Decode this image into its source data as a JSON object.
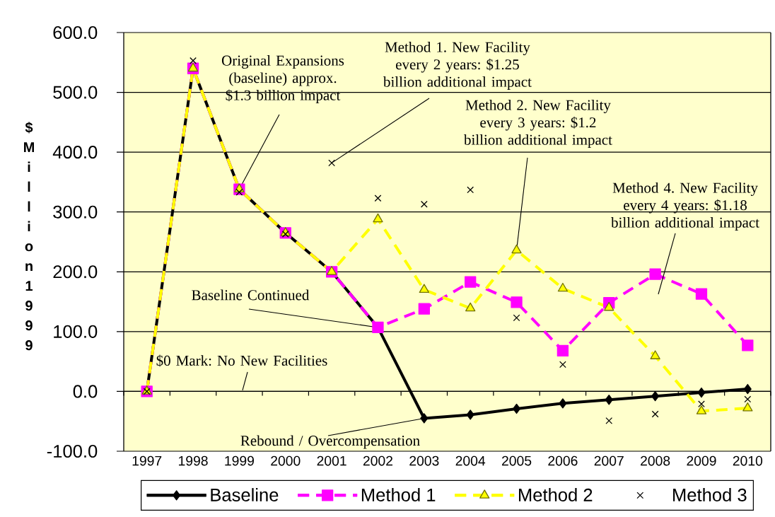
{
  "chart_data": {
    "type": "line",
    "ylabel": "$ Million 1999",
    "categories": [
      "1997",
      "1998",
      "1999",
      "2000",
      "2001",
      "2002",
      "2003",
      "2004",
      "2005",
      "2006",
      "2007",
      "2008",
      "2009",
      "2010"
    ],
    "series": [
      {
        "name": "Baseline",
        "color": "#000000",
        "marker": "diamond",
        "line_style": "solid",
        "values": [
          0,
          540,
          338,
          265,
          200,
          107,
          -45,
          -39,
          -29,
          -20,
          -14,
          -8,
          -2,
          4
        ]
      },
      {
        "name": "Method 1",
        "color": "#ff00ff",
        "marker": "square",
        "line_style": "dashed",
        "values": [
          0,
          540,
          338,
          265,
          200,
          107,
          138,
          183,
          149,
          68,
          148,
          196,
          163,
          77
        ]
      },
      {
        "name": "Method 2",
        "color": "#ffff00",
        "marker": "triangle",
        "line_style": "dashed",
        "values": [
          0,
          540,
          338,
          265,
          200,
          288,
          170,
          139,
          236,
          172,
          140,
          59,
          -33,
          -28
        ]
      },
      {
        "name": "Method 3",
        "type": "scatter",
        "color": "#000000",
        "marker": "cross",
        "values": [
          0,
          553,
          333,
          263,
          382,
          323,
          313,
          337,
          123,
          45,
          -49,
          -38,
          -21,
          -13
        ]
      }
    ],
    "ylim": [
      -100,
      600
    ],
    "yticks": [
      {
        "value": -100,
        "label": "-100.0"
      },
      {
        "value": 0,
        "label": "0.0"
      },
      {
        "value": 100,
        "label": "100.0"
      },
      {
        "value": 200,
        "label": "200.0"
      },
      {
        "value": 300,
        "label": "300.0"
      },
      {
        "value": 400,
        "label": "400.0"
      },
      {
        "value": 500,
        "label": "500.0"
      },
      {
        "value": 600,
        "label": "600.0"
      }
    ],
    "grid": "y",
    "legend": "bottom",
    "annotations": [
      {
        "text": "Original Expansions (baseline) approx. $1.3 billion impact",
        "x": "1999",
        "y": 338
      },
      {
        "text": "Method 1. New Facility every 2 years: $1.25 billion additional impact",
        "x": "2001",
        "y": 382
      },
      {
        "text": "Method 2. New Facility every 3 years: $1.2 billion additional impact",
        "x": "2005",
        "y": 236
      },
      "Method 4. New Facility every 4 years: $1.18 billion additional impact",
      {
        "text": "Baseline Continued",
        "x": "2002",
        "y": 107
      },
      "$0 Mark: No New Facilities",
      {
        "text": "Rebound / Overcompensation",
        "x": "2003",
        "y": -45
      }
    ]
  }
}
